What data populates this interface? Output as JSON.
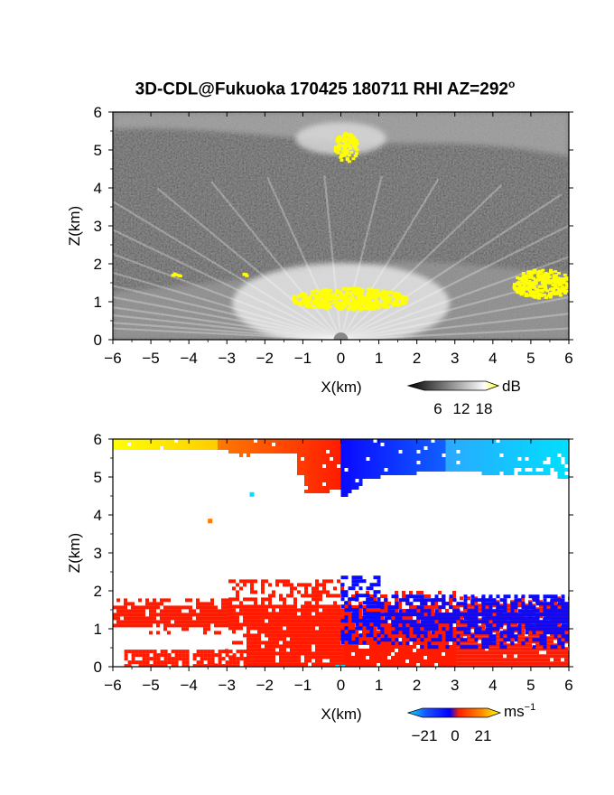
{
  "title": {
    "text": "3D-CDL@Fukuoka 170425 180711 RHI AZ=292",
    "sup": "o"
  },
  "colors": {
    "yellow": "#ffff00",
    "red": "#ff1a00",
    "blue": "#0a0aff",
    "cyan": "#00e0ff",
    "orange": "#ff7a00",
    "gold": "#ffcc00",
    "sky": "#2aa8ff"
  },
  "chart_data": [
    {
      "type": "heatmap",
      "variable": "backscatter",
      "xlabel": "X(km)",
      "ylabel": "Z(km)",
      "xlim": [
        -6,
        6
      ],
      "ylim": [
        0,
        6
      ],
      "xticks": [
        -6,
        -5,
        -4,
        -3,
        -2,
        -1,
        0,
        1,
        2,
        3,
        4,
        5,
        6
      ],
      "yticks": [
        0,
        1,
        2,
        3,
        4,
        5,
        6
      ],
      "colorbar": {
        "unit": "dB",
        "ticks": [
          "6",
          "12",
          "18"
        ],
        "range": [
          0,
          21
        ]
      },
      "features": [
        {
          "kind": "gray-layer",
          "x": [
            -6,
            6
          ],
          "z": [
            5.3,
            6.0
          ]
        },
        {
          "kind": "gray-layer",
          "x": [
            -6,
            6
          ],
          "z": [
            0,
            2.1
          ]
        },
        {
          "kind": "yellow-patch",
          "x": [
            -1.3,
            1.7
          ],
          "z": [
            0.8,
            1.4
          ]
        },
        {
          "kind": "yellow-patch",
          "x": [
            -0.2,
            0.4
          ],
          "z": [
            4.7,
            5.5
          ]
        },
        {
          "kind": "yellow-patch",
          "x": [
            4.5,
            6.0
          ],
          "z": [
            1.1,
            1.9
          ]
        },
        {
          "kind": "yellow-patch",
          "x": [
            -4.5,
            -4.2
          ],
          "z": [
            1.7,
            1.8
          ]
        },
        {
          "kind": "yellow-patch",
          "x": [
            -2.6,
            -2.4
          ],
          "z": [
            1.7,
            1.8
          ]
        }
      ]
    },
    {
      "type": "heatmap",
      "variable": "radial velocity",
      "xlabel": "X(km)",
      "ylabel": "Z(km)",
      "xlim": [
        -6,
        6
      ],
      "ylim": [
        0,
        6
      ],
      "xticks": [
        -6,
        -5,
        -4,
        -3,
        -2,
        -1,
        0,
        1,
        2,
        3,
        4,
        5,
        6
      ],
      "yticks": [
        0,
        1,
        2,
        3,
        4,
        5,
        6
      ],
      "colorbar": {
        "unit": "ms",
        "unit_sup": "−1",
        "ticks": [
          "−21",
          "0",
          "21"
        ],
        "range": [
          -21,
          21
        ]
      },
      "features": [
        {
          "kind": "receding-upper",
          "x": [
            -6,
            0
          ],
          "z": [
            5.1,
            6.0
          ]
        },
        {
          "kind": "approaching-upper",
          "x": [
            0,
            6
          ],
          "z": [
            4.5,
            6.0
          ]
        },
        {
          "kind": "receding-lower",
          "x": [
            -6,
            6
          ],
          "z": [
            0,
            2.5
          ]
        },
        {
          "kind": "approaching-lower",
          "x": [
            0,
            6
          ],
          "z": [
            0.6,
            2.5
          ]
        }
      ]
    }
  ]
}
